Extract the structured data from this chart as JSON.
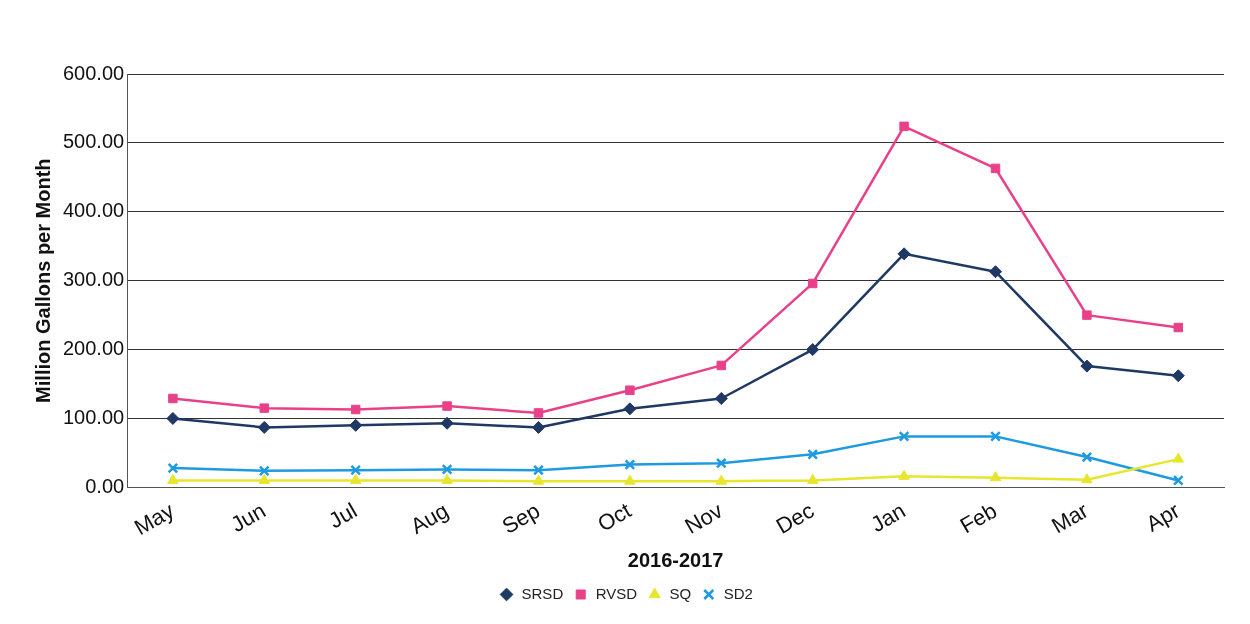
{
  "chart_data": {
    "type": "line",
    "xlabel": "2016-2017",
    "ylabel": "Million Gallons per Month",
    "categories": [
      "May",
      "Jun",
      "Jul",
      "Aug",
      "Sep",
      "Oct",
      "Nov",
      "Dec",
      "Jan",
      "Feb",
      "Mar",
      "Apr"
    ],
    "series": [
      {
        "name": "SRSD",
        "color": "#1f3864",
        "marker": "diamond",
        "values": [
          100,
          87,
          90,
          93,
          87,
          114,
          129,
          200,
          339,
          313,
          176,
          162
        ]
      },
      {
        "name": "RVSD",
        "color": "#e8418a",
        "marker": "square",
        "values": [
          129,
          115,
          113,
          118,
          108,
          141,
          177,
          296,
          524,
          463,
          250,
          232
        ]
      },
      {
        "name": "SQ",
        "color": "#e6e62e",
        "marker": "triangle",
        "values": [
          10,
          10,
          10,
          10,
          9,
          9,
          9,
          10,
          16,
          14,
          11,
          41
        ]
      },
      {
        "name": "SD2",
        "color": "#1e9be0",
        "marker": "cross",
        "values": [
          28,
          24,
          25,
          26,
          25,
          33,
          35,
          48,
          74,
          74,
          44,
          10
        ]
      }
    ],
    "ylim": [
      0,
      600
    ],
    "yticks": [
      {
        "value": 0,
        "label": "0.00"
      },
      {
        "value": 100,
        "label": "100.00"
      },
      {
        "value": 200,
        "label": "200.00"
      },
      {
        "value": 300,
        "label": "300.00"
      },
      {
        "value": 400,
        "label": "400.00"
      },
      {
        "value": 500,
        "label": "500.00"
      },
      {
        "value": 600,
        "label": "600.00"
      }
    ],
    "grid": "y",
    "legend": "bottom",
    "line_style": "solid"
  }
}
